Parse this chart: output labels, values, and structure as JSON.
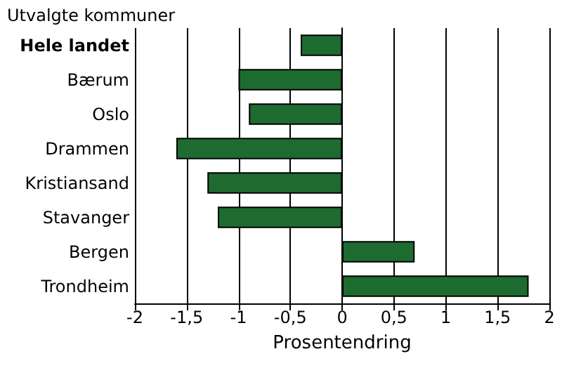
{
  "chart_data": {
    "type": "bar",
    "orientation": "horizontal",
    "title": "Utvalgte kommuner",
    "xlabel": "Prosentendring",
    "categories": [
      "Hele landet",
      "Bærum",
      "Oslo",
      "Drammen",
      "Kristiansand",
      "Stavanger",
      "Bergen",
      "Trondheim"
    ],
    "values": [
      -0.4,
      -1.0,
      -0.9,
      -1.6,
      -1.3,
      -1.2,
      0.7,
      1.8
    ],
    "color": "#1e6b30",
    "xlim": [
      -2,
      2
    ],
    "xticks": [
      -2,
      {
        "value": -1.5,
        "label": "-1,5"
      },
      -1,
      {
        "value": -0.5,
        "label": "-0,5"
      },
      0,
      {
        "value": 0.5,
        "label": "0,5"
      },
      1,
      {
        "value": 1.5,
        "label": "1,5"
      },
      2
    ],
    "grid": "x"
  }
}
